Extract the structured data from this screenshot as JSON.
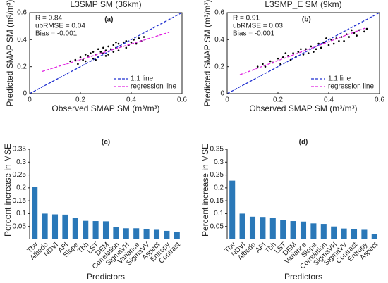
{
  "chart_data": [
    {
      "type": "scatter",
      "title": "L3SMP SM (36km)",
      "panel_label": "(a)",
      "annotations": [
        "R = 0.84",
        "ubRMSE = 0.04",
        "Bias = -0.001"
      ],
      "xlabel": "Observed SMAP SM (m³/m³)",
      "ylabel": "Predicted SMAP SM (m³/m³)",
      "xlim": [
        0,
        0.6
      ],
      "ylim": [
        0,
        0.6
      ],
      "xticks": [
        0,
        0.2,
        0.4,
        0.6
      ],
      "yticks": [
        0,
        0.2,
        0.4,
        0.6
      ],
      "color": "#000000",
      "legend": "lower right",
      "x": [
        0.16,
        0.18,
        0.19,
        0.2,
        0.21,
        0.22,
        0.22,
        0.23,
        0.24,
        0.25,
        0.25,
        0.26,
        0.27,
        0.27,
        0.28,
        0.29,
        0.29,
        0.3,
        0.31,
        0.31,
        0.32,
        0.33,
        0.33,
        0.34,
        0.35,
        0.35,
        0.36,
        0.37,
        0.38,
        0.38,
        0.39,
        0.4,
        0.41,
        0.42,
        0.43,
        0.44,
        0.45,
        0.3,
        0.26,
        0.34
      ],
      "values": [
        0.24,
        0.25,
        0.22,
        0.27,
        0.25,
        0.29,
        0.24,
        0.28,
        0.3,
        0.26,
        0.31,
        0.29,
        0.33,
        0.27,
        0.31,
        0.3,
        0.34,
        0.32,
        0.29,
        0.35,
        0.33,
        0.31,
        0.36,
        0.34,
        0.32,
        0.37,
        0.35,
        0.38,
        0.34,
        0.39,
        0.36,
        0.38,
        0.4,
        0.37,
        0.41,
        0.39,
        0.42,
        0.28,
        0.25,
        0.38
      ],
      "lines": [
        {
          "name": "1:1 line",
          "color": "#1f2fd0",
          "x": [
            0,
            0.6
          ],
          "values": [
            0,
            0.6
          ]
        },
        {
          "name": "regression line",
          "color": "#e020e0",
          "x": [
            0.05,
            0.55
          ],
          "values": [
            0.165,
            0.455
          ]
        }
      ]
    },
    {
      "type": "scatter",
      "title": "L3SMP_E SM (9km)",
      "panel_label": "(b)",
      "annotations": [
        "R = 0.91",
        "ubRMSE = 0.03",
        "Bias = -0.001"
      ],
      "xlabel": "Observed SMAP SM (m³/m³)",
      "ylabel": "Predicted SMAP SM (m³/m³)",
      "xlim": [
        0,
        0.6
      ],
      "ylim": [
        0,
        0.6
      ],
      "xticks": [
        0,
        0.2,
        0.4,
        0.6
      ],
      "yticks": [
        0,
        0.2,
        0.4,
        0.6
      ],
      "color": "#000000",
      "legend": "lower right",
      "x": [
        0.12,
        0.14,
        0.15,
        0.17,
        0.18,
        0.2,
        0.21,
        0.22,
        0.24,
        0.25,
        0.26,
        0.27,
        0.28,
        0.3,
        0.31,
        0.32,
        0.33,
        0.35,
        0.36,
        0.37,
        0.38,
        0.4,
        0.41,
        0.42,
        0.43,
        0.45,
        0.46,
        0.47,
        0.48,
        0.5,
        0.51,
        0.52,
        0.54,
        0.55,
        0.29,
        0.34,
        0.39,
        0.44,
        0.23,
        0.49
      ],
      "values": [
        0.2,
        0.22,
        0.2,
        0.24,
        0.23,
        0.26,
        0.22,
        0.27,
        0.28,
        0.25,
        0.3,
        0.27,
        0.31,
        0.29,
        0.33,
        0.3,
        0.35,
        0.33,
        0.37,
        0.34,
        0.38,
        0.36,
        0.4,
        0.37,
        0.41,
        0.42,
        0.39,
        0.44,
        0.42,
        0.45,
        0.43,
        0.47,
        0.46,
        0.48,
        0.33,
        0.31,
        0.41,
        0.39,
        0.3,
        0.47
      ],
      "lines": [
        {
          "name": "1:1 line",
          "color": "#1f2fd0",
          "x": [
            0,
            0.6
          ],
          "values": [
            0,
            0.6
          ]
        },
        {
          "name": "regression line",
          "color": "#e020e0",
          "x": [
            0.05,
            0.55
          ],
          "values": [
            0.14,
            0.49
          ]
        }
      ]
    },
    {
      "type": "bar",
      "panel_label": "(c)",
      "xlabel": "Predictors",
      "ylabel": "Percent increase in MSE",
      "categories": [
        "Tbv",
        "Albedo",
        "NDVI",
        "API",
        "Slope",
        "Tbh",
        "LST",
        "DEM",
        "Correlation",
        "SigmaVH",
        "Variance",
        "SigmaVV",
        "Aspect",
        "Entropy",
        "Contrast"
      ],
      "values": [
        0.205,
        0.1,
        0.097,
        0.096,
        0.083,
        0.072,
        0.071,
        0.07,
        0.048,
        0.043,
        0.043,
        0.04,
        0.037,
        0.033,
        0.03
      ],
      "color": "#2a78b8",
      "ylim": [
        0,
        0.35
      ],
      "yticks": [
        0.05,
        0.1,
        0.15,
        0.2,
        0.25,
        0.3,
        0.35
      ]
    },
    {
      "type": "bar",
      "panel_label": "(d)",
      "xlabel": "Predictors",
      "ylabel": "Percent increase in MSE",
      "categories": [
        "Tbv",
        "NDVI",
        "Albedo",
        "API",
        "Tbh",
        "LST",
        "DEM",
        "Variance",
        "Slope",
        "Correlation",
        "SigmaVH",
        "SigmaVV",
        "Contrast",
        "Entropy",
        "Aspect"
      ],
      "values": [
        0.228,
        0.1,
        0.088,
        0.087,
        0.083,
        0.075,
        0.071,
        0.069,
        0.062,
        0.06,
        0.05,
        0.042,
        0.04,
        0.037,
        0.02
      ],
      "color": "#2a78b8",
      "ylim": [
        0,
        0.35
      ],
      "yticks": [
        0.05,
        0.1,
        0.15,
        0.2,
        0.25,
        0.3,
        0.35
      ]
    }
  ]
}
